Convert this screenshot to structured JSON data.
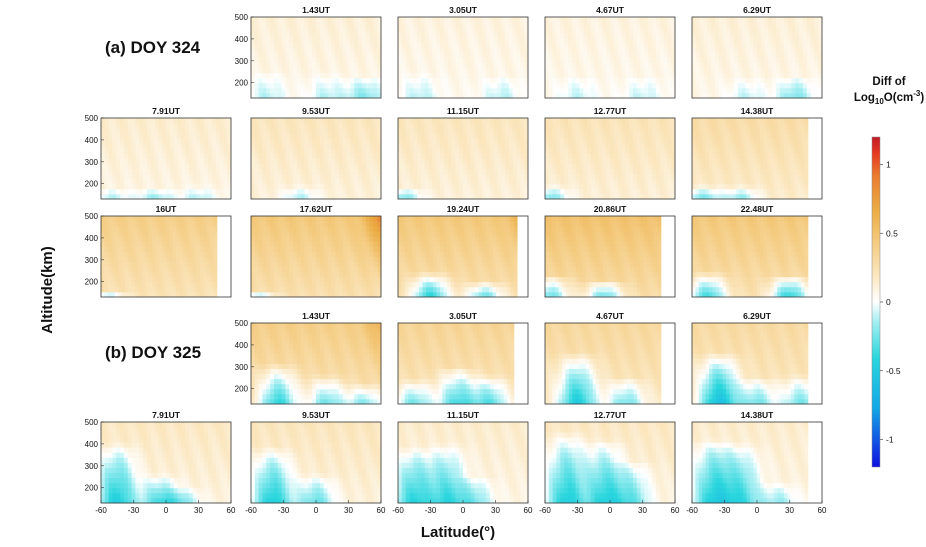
{
  "chart_data": {
    "type": "heatmap",
    "ylabel": "Altitude(km)",
    "xlabel": "Latitude(°)",
    "xlim": [
      -60,
      60
    ],
    "ylim": [
      130,
      500
    ],
    "x_ticks": [
      "-60",
      "-30",
      "0",
      "30",
      "60"
    ],
    "y_ticks": [
      "500",
      "400",
      "300",
      "200"
    ],
    "colorbar": {
      "title_line1": "Diff of",
      "title_line2": "Log",
      "title_sub": "10",
      "title_unit": "O(cm",
      "title_sup": "-3",
      "title_close": ")",
      "range": [
        -1.2,
        1.2
      ],
      "ticks": [
        {
          "value": 1,
          "label": "1"
        },
        {
          "value": 0.5,
          "label": "0.5"
        },
        {
          "value": 0,
          "label": "0"
        },
        {
          "value": -0.5,
          "label": "-0.5"
        },
        {
          "value": -1,
          "label": "-1"
        }
      ],
      "colors": [
        "#1010e0",
        "#14a8e6",
        "#2ad6dd",
        "#a4eef2",
        "#ffffff",
        "#fbe7c0",
        "#f4cb80",
        "#ebac44",
        "#ea7e30",
        "#e63a22",
        "#c21a26"
      ]
    },
    "groups": [
      {
        "label": "(a) DOY 324"
      },
      {
        "label": "(b) DOY 325"
      }
    ],
    "panels": [
      {
        "title": "1.43UT",
        "group": 0,
        "overall": 0.12,
        "lat_max": 60,
        "high_lat_max": null,
        "depletion": [
          [
            -45,
            250,
            -0.1
          ],
          [
            10,
            240,
            -0.1
          ],
          [
            45,
            230,
            -0.2
          ]
        ]
      },
      {
        "title": "3.05UT",
        "group": 0,
        "overall": 0.1,
        "lat_max": 60,
        "high_lat_max": null,
        "depletion": [
          [
            -40,
            240,
            -0.1
          ],
          [
            35,
            230,
            -0.1
          ]
        ]
      },
      {
        "title": "4.67UT",
        "group": 0,
        "overall": 0.1,
        "lat_max": 60,
        "high_lat_max": null,
        "depletion": [
          [
            -30,
            230,
            -0.08
          ],
          [
            30,
            230,
            -0.08
          ]
        ]
      },
      {
        "title": "6.29UT",
        "group": 0,
        "overall": 0.12,
        "lat_max": 60,
        "high_lat_max": null,
        "depletion": [
          [
            -10,
            220,
            -0.08
          ],
          [
            35,
            230,
            -0.2
          ]
        ]
      },
      {
        "title": "7.91UT",
        "group": 0,
        "overall": 0.15,
        "lat_max": 60,
        "high_lat_max": null,
        "depletion": [
          [
            -50,
            180,
            -0.1
          ],
          [
            -10,
            180,
            -0.15
          ],
          [
            30,
            190,
            -0.1
          ]
        ]
      },
      {
        "title": "9.53UT",
        "group": 0,
        "overall": 0.2,
        "lat_max": 60,
        "high_lat_max": null,
        "depletion": [
          [
            -15,
            190,
            -0.1
          ]
        ]
      },
      {
        "title": "11.15UT",
        "group": 0,
        "overall": 0.2,
        "lat_max": 60,
        "high_lat_max": null,
        "depletion": [
          [
            -55,
            180,
            -0.2
          ]
        ]
      },
      {
        "title": "12.77UT",
        "group": 0,
        "overall": 0.22,
        "lat_max": 60,
        "high_lat_max": null,
        "depletion": [
          [
            -55,
            190,
            -0.2
          ]
        ]
      },
      {
        "title": "14.38UT",
        "group": 0,
        "overall": 0.28,
        "lat_max": 47,
        "high_lat_max": null,
        "depletion": [
          [
            -50,
            190,
            -0.2
          ],
          [
            -15,
            190,
            -0.15
          ]
        ]
      },
      {
        "title": "16UT",
        "group": 0,
        "overall": 0.4,
        "lat_max": 47,
        "high_lat_max": null,
        "depletion": [
          [
            -55,
            160,
            -0.1
          ]
        ]
      },
      {
        "title": "17.62UT",
        "group": 0,
        "overall": 0.45,
        "lat_max": 60,
        "high_lat_max": 0.95,
        "depletion": [
          [
            -55,
            160,
            -0.1
          ]
        ]
      },
      {
        "title": "19.24UT",
        "group": 0,
        "overall": 0.45,
        "lat_max": 50,
        "high_lat_max": 0.8,
        "depletion": [
          [
            -30,
            240,
            -0.35
          ],
          [
            20,
            200,
            -0.2
          ]
        ]
      },
      {
        "title": "20.86UT",
        "group": 0,
        "overall": 0.5,
        "lat_max": 47,
        "high_lat_max": 0.55,
        "depletion": [
          [
            -55,
            230,
            -0.2
          ],
          [
            -5,
            210,
            -0.2
          ]
        ]
      },
      {
        "title": "22.48UT",
        "group": 0,
        "overall": 0.45,
        "lat_max": 47,
        "high_lat_max": null,
        "depletion": [
          [
            -45,
            240,
            -0.3
          ],
          [
            30,
            230,
            -0.35
          ]
        ]
      },
      {
        "title": "1.43UT",
        "group": 1,
        "overall": 0.4,
        "lat_max": 60,
        "high_lat_max": 0.65,
        "depletion": [
          [
            -35,
            310,
            -0.35
          ],
          [
            10,
            260,
            -0.2
          ],
          [
            45,
            220,
            -0.15
          ]
        ]
      },
      {
        "title": "3.05UT",
        "group": 1,
        "overall": 0.35,
        "lat_max": 47,
        "high_lat_max": null,
        "depletion": [
          [
            -45,
            240,
            -0.2
          ],
          [
            -5,
            300,
            -0.3
          ],
          [
            25,
            260,
            -0.25
          ]
        ]
      },
      {
        "title": "4.67UT",
        "group": 1,
        "overall": 0.32,
        "lat_max": 47,
        "high_lat_max": null,
        "depletion": [
          [
            -30,
            360,
            -0.45
          ],
          [
            15,
            250,
            -0.2
          ]
        ]
      },
      {
        "title": "6.29UT",
        "group": 1,
        "overall": 0.3,
        "lat_max": 47,
        "high_lat_max": null,
        "depletion": [
          [
            -35,
            360,
            -0.55
          ],
          [
            0,
            250,
            -0.2
          ],
          [
            40,
            260,
            -0.2
          ]
        ]
      },
      {
        "title": "7.91UT",
        "group": 1,
        "overall": 0.18,
        "lat_max": 60,
        "high_lat_max": null,
        "depletion": [
          [
            -45,
            400,
            -0.45
          ],
          [
            -5,
            260,
            -0.3
          ],
          [
            15,
            200,
            -0.15
          ]
        ]
      },
      {
        "title": "9.53UT",
        "group": 1,
        "overall": 0.2,
        "lat_max": 60,
        "high_lat_max": null,
        "depletion": [
          [
            -40,
            380,
            -0.45
          ],
          [
            0,
            260,
            -0.25
          ]
        ]
      },
      {
        "title": "11.15UT",
        "group": 1,
        "overall": 0.15,
        "lat_max": 60,
        "high_lat_max": null,
        "depletion": [
          [
            -45,
            380,
            -0.4
          ],
          [
            -15,
            400,
            -0.35
          ],
          [
            10,
            250,
            -0.2
          ]
        ]
      },
      {
        "title": "12.77UT",
        "group": 1,
        "overall": 0.18,
        "lat_max": 60,
        "high_lat_max": null,
        "depletion": [
          [
            -40,
            450,
            -0.45
          ],
          [
            -5,
            420,
            -0.4
          ],
          [
            20,
            320,
            -0.25
          ]
        ]
      },
      {
        "title": "14.38UT",
        "group": 1,
        "overall": 0.15,
        "lat_max": 47,
        "high_lat_max": null,
        "depletion": [
          [
            -40,
            420,
            -0.45
          ],
          [
            -15,
            400,
            -0.35
          ],
          [
            20,
            220,
            -0.15
          ]
        ]
      }
    ]
  }
}
